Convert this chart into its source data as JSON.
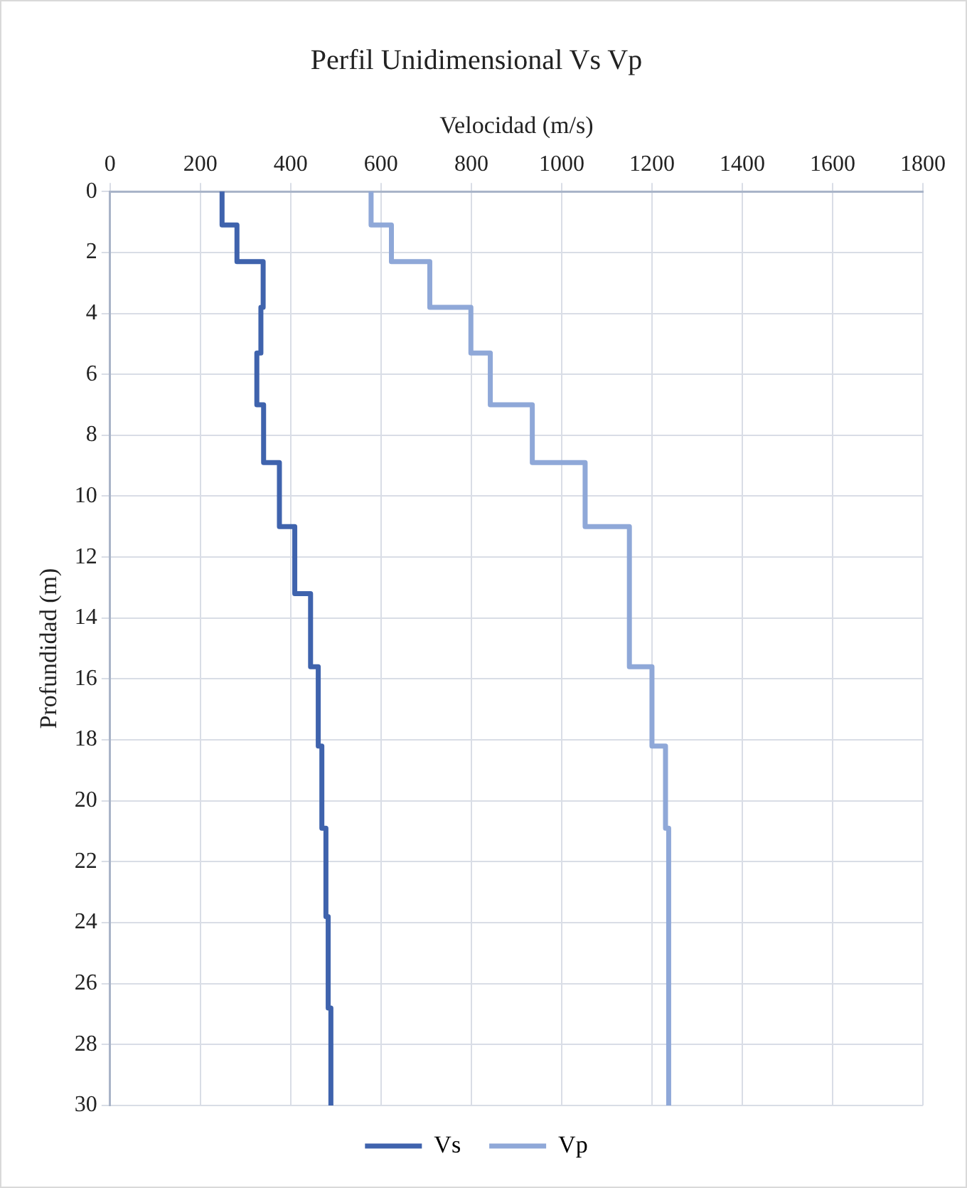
{
  "chart_data": {
    "type": "line",
    "title": "Perfil Unidimensional Vs Vp",
    "xlabel": "Velocidad (m/s)",
    "ylabel": "Profundidad (m)",
    "xlim": [
      0,
      1800
    ],
    "xticks": [
      0,
      200,
      400,
      600,
      800,
      1000,
      1200,
      1400,
      1600,
      1800
    ],
    "ylim": [
      30,
      0
    ],
    "yticks": [
      0,
      2,
      4,
      6,
      8,
      10,
      12,
      14,
      16,
      18,
      20,
      22,
      24,
      26,
      28,
      30
    ],
    "grid": true,
    "legend": "bottom",
    "marker": "none",
    "line_style": "solid",
    "series": [
      {
        "name": "Vs",
        "color": "#3f63ad",
        "x": [
          248,
          248,
          281,
          281,
          339,
          339,
          334,
          334,
          325,
          325,
          340,
          340,
          375,
          375,
          409,
          409,
          444,
          444,
          461,
          461,
          469,
          469,
          478,
          478,
          483,
          483,
          489,
          489
        ],
        "values": [
          0,
          1.1,
          1.1,
          2.3,
          2.3,
          3.8,
          3.8,
          5.3,
          5.3,
          7.0,
          7.0,
          8.9,
          8.9,
          11.0,
          11.0,
          13.2,
          13.2,
          15.6,
          15.6,
          18.2,
          18.2,
          20.9,
          20.9,
          23.8,
          23.8,
          26.8,
          26.8,
          30
        ]
      },
      {
        "name": "Vp",
        "color": "#8fa8d8",
        "x": [
          578,
          578,
          623,
          623,
          708,
          708,
          799,
          799,
          842,
          842,
          935,
          935,
          1052,
          1052,
          1150,
          1150,
          1200,
          1200,
          1230,
          1230,
          1237,
          1237
        ],
        "values": [
          0,
          1.1,
          1.1,
          2.3,
          2.3,
          3.8,
          3.8,
          5.3,
          5.3,
          7.0,
          7.0,
          8.9,
          8.9,
          11.0,
          11.0,
          15.6,
          15.6,
          18.2,
          18.2,
          20.9,
          20.9,
          30
        ]
      }
    ]
  }
}
